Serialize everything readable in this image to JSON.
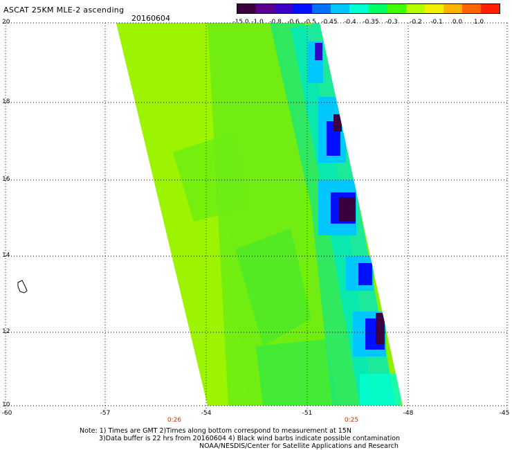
{
  "header": {
    "title": "ASCAT 25KM MLE-2 ascending",
    "date": "20160604"
  },
  "colorbar": {
    "labels": [
      "-15.0",
      "-1.0",
      "-0.8",
      "-0.6",
      "-0.5",
      "-0.45",
      "-0.4",
      "-0.35",
      "-0.3",
      "-0.2",
      "-0.1",
      "0.0",
      "1.0"
    ],
    "colors": [
      "#3a0040",
      "#5a008a",
      "#3a00c8",
      "#0010ff",
      "#0070ff",
      "#00c8ff",
      "#00ffd0",
      "#00ff60",
      "#40ff00",
      "#b4ff00",
      "#f0f000",
      "#ffb400",
      "#ff6400",
      "#ff1e00"
    ]
  },
  "axes": {
    "lat_labels": [
      "20",
      "18",
      "16",
      "14",
      "12",
      "10"
    ],
    "lon_labels": [
      "-60",
      "-57",
      "-54",
      "-51",
      "-48",
      "-45"
    ]
  },
  "times": [
    "0:26",
    "0:25"
  ],
  "notes": {
    "line1": "Note: 1) Times are GMT 2)Times along bottom correspond to measurement at 15N",
    "line2": "3)Data buffer is 22 hrs from 20160604 4) Black wind barbs indicate possible contamination",
    "line3": "NOAA/NESDIS/Center for Satellite Applications and Research"
  },
  "colors": {
    "background": "#ffffff",
    "swath_main": "#80f000",
    "grid": "#000000",
    "grid_blue": "#0000ff",
    "time_text": "#c83200"
  }
}
